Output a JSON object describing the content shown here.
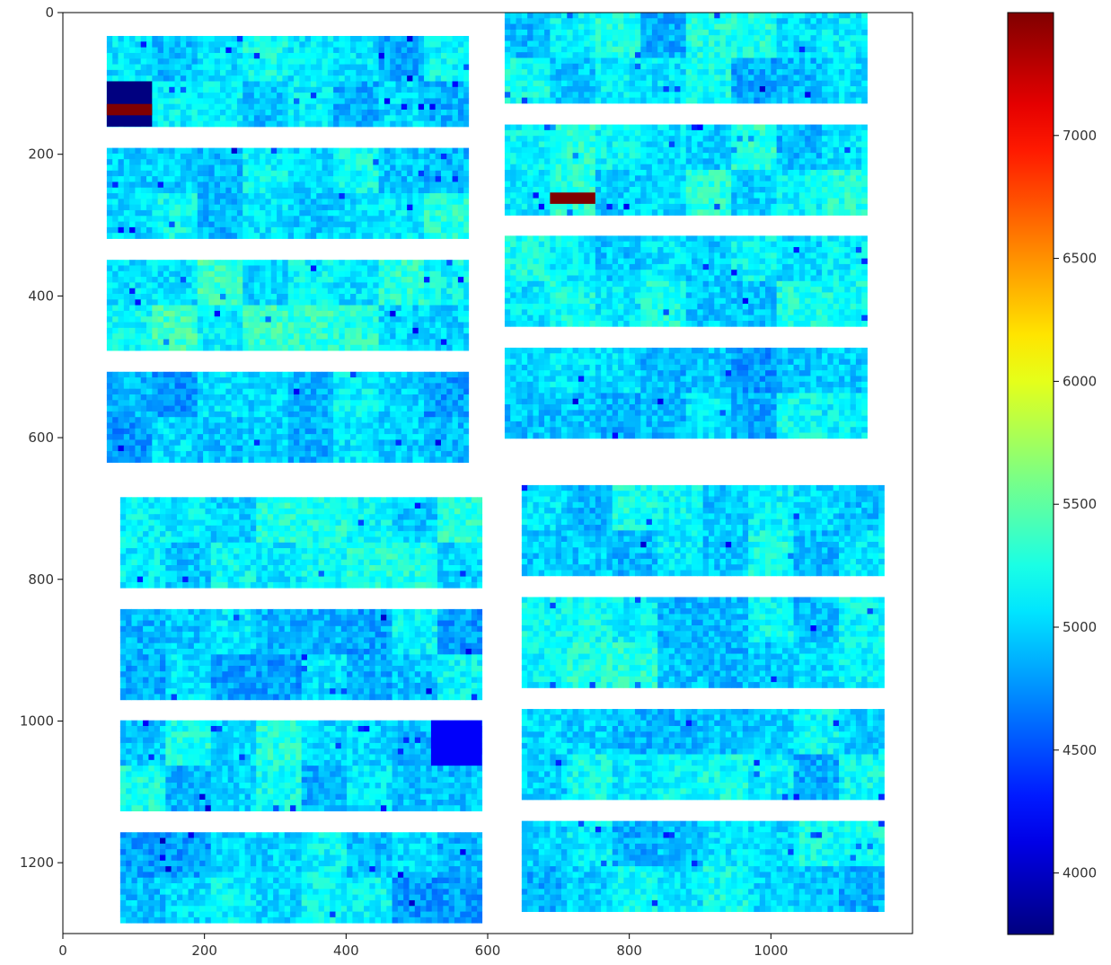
{
  "chart_data": {
    "type": "heatmap",
    "title": "",
    "xlabel": "",
    "ylabel": "",
    "xlim": [
      0,
      1200
    ],
    "ylim": [
      1300,
      0
    ],
    "x_ticks": [
      {
        "value": 0,
        "label": "0"
      },
      {
        "value": 200,
        "label": "200"
      },
      {
        "value": 400,
        "label": "400"
      },
      {
        "value": 600,
        "label": "600"
      },
      {
        "value": 800,
        "label": "800"
      },
      {
        "value": 1000,
        "label": "1000"
      }
    ],
    "y_ticks": [
      {
        "value": 0,
        "label": "0"
      },
      {
        "value": 200,
        "label": "200"
      },
      {
        "value": 400,
        "label": "400"
      },
      {
        "value": 600,
        "label": "600"
      },
      {
        "value": 800,
        "label": "800"
      },
      {
        "value": 1000,
        "label": "1000"
      },
      {
        "value": 1200,
        "label": "1200"
      }
    ],
    "colormap": "jet",
    "colorbar": {
      "min": 3750,
      "max": 7500,
      "ticks": [
        {
          "value": 4000,
          "label": "4000"
        },
        {
          "value": 4500,
          "label": "4500"
        },
        {
          "value": 5000,
          "label": "5000"
        },
        {
          "value": 5500,
          "label": "5500"
        },
        {
          "value": 6000,
          "label": "6000"
        },
        {
          "value": 6500,
          "label": "6500"
        },
        {
          "value": 7000,
          "label": "7000"
        }
      ]
    },
    "background": "nan (white)",
    "module_grid": {
      "columns": 8,
      "rows": 2
    },
    "modules": [
      {
        "x0": 62,
        "x1": 573,
        "y0": 33,
        "y1": 161,
        "mean": 5000
      },
      {
        "x0": 62,
        "x1": 573,
        "y0": 191,
        "y1": 319,
        "mean": 5080
      },
      {
        "x0": 62,
        "x1": 573,
        "y0": 349,
        "y1": 477,
        "mean": 5180
      },
      {
        "x0": 62,
        "x1": 573,
        "y0": 507,
        "y1": 635,
        "mean": 4940
      },
      {
        "x0": 624,
        "x1": 1136,
        "y0": 0,
        "y1": 128,
        "mean": 5050
      },
      {
        "x0": 624,
        "x1": 1136,
        "y0": 158,
        "y1": 286,
        "mean": 5120
      },
      {
        "x0": 624,
        "x1": 1136,
        "y0": 315,
        "y1": 443,
        "mean": 5150
      },
      {
        "x0": 624,
        "x1": 1136,
        "y0": 473,
        "y1": 601,
        "mean": 4980
      },
      {
        "x0": 81,
        "x1": 592,
        "y0": 684,
        "y1": 812,
        "mean": 5150
      },
      {
        "x0": 81,
        "x1": 592,
        "y0": 842,
        "y1": 970,
        "mean": 4960
      },
      {
        "x0": 81,
        "x1": 592,
        "y0": 999,
        "y1": 1127,
        "mean": 5080
      },
      {
        "x0": 81,
        "x1": 592,
        "y0": 1157,
        "y1": 1285,
        "mean": 4980
      },
      {
        "x0": 648,
        "x1": 1160,
        "y0": 667,
        "y1": 795,
        "mean": 5080
      },
      {
        "x0": 648,
        "x1": 1160,
        "y0": 825,
        "y1": 953,
        "mean": 5080
      },
      {
        "x0": 648,
        "x1": 1160,
        "y0": 983,
        "y1": 1111,
        "mean": 5050
      },
      {
        "x0": 648,
        "x1": 1160,
        "y0": 1141,
        "y1": 1269,
        "mean": 5040
      }
    ],
    "anomalies": [
      {
        "module": 0,
        "x0": 62,
        "x1": 126,
        "y0": 97,
        "y1": 161,
        "value": 3750
      },
      {
        "module": 0,
        "x0": 62,
        "x1": 126,
        "y0": 129,
        "y1": 145,
        "value": 7500
      },
      {
        "module": 5,
        "x0": 688,
        "x1": 752,
        "y0": 254,
        "y1": 270,
        "value": 7500
      },
      {
        "module": 10,
        "x0": 520,
        "x1": 592,
        "y0": 999,
        "y1": 1063,
        "value": 4200
      }
    ]
  }
}
